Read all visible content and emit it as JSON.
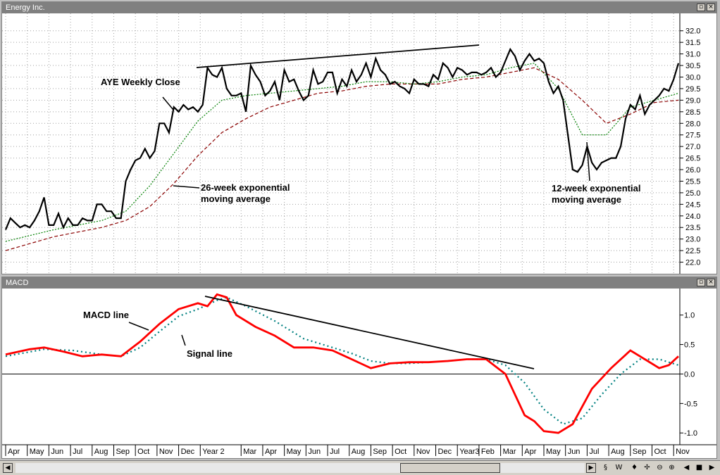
{
  "window": {
    "title": "Energy Inc."
  },
  "macd_window": {
    "title": "MACD"
  },
  "annotations": {
    "close": "AYE Weekly Close",
    "ema26_1": "26-week exponential",
    "ema26_2": "moving average",
    "ema12_1": "12-week exponential",
    "ema12_2": "moving average",
    "macd": "MACD line",
    "signal": "Signal line"
  },
  "colors": {
    "close": "#000000",
    "ema12": "#008000",
    "ema26": "#8b0000",
    "macd": "#ff0000",
    "signal": "#008080"
  },
  "toolbar": {
    "icons": [
      "scroll-end-icon",
      "wave-icon",
      "move-icon",
      "crosshair-icon",
      "zoom-out-icon",
      "zoom-in-icon",
      "left-arrow-icon",
      "stop-icon",
      "right-arrow-icon"
    ],
    "labels": [
      "§",
      "W",
      "♦",
      "✢",
      "⊖",
      "⊕",
      "◀",
      "■",
      "▶"
    ]
  },
  "chart_data": [
    {
      "type": "line",
      "title": "Energy Inc.",
      "x_range": [
        0,
        140
      ],
      "ylim": [
        21.5,
        32.6
      ],
      "yticks": [
        "22.0",
        "22.5",
        "23.0",
        "23.5",
        "24.0",
        "24.5",
        "25.0",
        "25.5",
        "26.0",
        "26.5",
        "27.0",
        "27.5",
        "28.0",
        "28.5",
        "29.0",
        "29.5",
        "30.0",
        "30.5",
        "31.0",
        "31.5",
        "32.0"
      ],
      "grid": true,
      "series": [
        {
          "name": "AYE Weekly Close",
          "x": [
            0,
            1,
            2,
            3,
            4,
            5,
            6,
            7,
            8,
            9,
            10,
            11,
            12,
            13,
            14,
            15,
            16,
            17,
            18,
            19,
            20,
            21,
            22,
            23,
            24,
            25,
            26,
            27,
            28,
            29,
            30,
            31,
            32,
            33,
            34,
            35,
            36,
            37,
            38,
            39,
            40,
            41,
            42,
            43,
            44,
            45,
            46,
            47,
            48,
            49,
            50,
            51,
            52,
            53,
            54,
            55,
            56,
            57,
            58,
            59,
            60,
            61,
            62,
            63,
            64,
            65,
            66,
            67,
            68,
            69,
            70,
            71,
            72,
            73,
            74,
            75,
            76,
            77,
            78,
            79,
            80,
            81,
            82,
            83,
            84,
            85,
            86,
            87,
            88,
            89,
            90,
            91,
            92,
            93,
            94,
            95,
            96,
            97,
            98,
            99,
            100,
            101,
            102,
            103,
            104,
            105,
            106,
            107,
            108,
            109,
            110,
            111,
            112,
            113,
            114,
            115,
            116,
            117,
            118,
            119,
            120,
            121,
            122,
            123,
            124,
            125,
            126,
            127,
            128,
            129,
            130,
            131,
            132,
            133,
            134,
            135,
            136,
            137,
            138,
            139,
            140
          ],
          "values": [
            23.4,
            23.9,
            23.7,
            23.5,
            23.6,
            23.5,
            23.8,
            24.2,
            24.8,
            23.6,
            23.6,
            24.1,
            23.5,
            23.9,
            23.6,
            23.6,
            23.9,
            23.8,
            23.8,
            24.5,
            24.5,
            24.2,
            24.2,
            23.9,
            23.9,
            25.5,
            26.0,
            26.4,
            26.5,
            26.9,
            26.5,
            26.8,
            28.0,
            28.0,
            27.6,
            28.7,
            28.5,
            28.8,
            28.6,
            28.7,
            28.5,
            28.8,
            30.4,
            30.1,
            30.0,
            30.4,
            29.5,
            29.2,
            29.2,
            29.3,
            28.5,
            30.5,
            30.1,
            29.8,
            29.2,
            29.4,
            29.8,
            29.0,
            30.3,
            29.8,
            29.9,
            29.4,
            29.0,
            29.2,
            30.3,
            29.7,
            29.8,
            30.2,
            30.2,
            29.3,
            29.9,
            29.6,
            30.3,
            29.8,
            30.1,
            30.6,
            30.0,
            30.8,
            30.3,
            30.1,
            29.7,
            29.8,
            29.6,
            29.5,
            29.3,
            29.9,
            29.7,
            29.7,
            29.6,
            30.1,
            29.9,
            30.6,
            30.4,
            30.0,
            30.4,
            30.3,
            30.1,
            30.2,
            30.2,
            30.1,
            30.2,
            30.4,
            30.0,
            30.2,
            30.7,
            31.2,
            30.9,
            30.3,
            30.7,
            31.0,
            30.7,
            30.8,
            30.6,
            29.8,
            29.3,
            29.6,
            29.0,
            27.5,
            26.0,
            25.9,
            26.2,
            27.0,
            26.3,
            26.0,
            26.3,
            26.4,
            26.5,
            26.5,
            27.0,
            28.2,
            28.8,
            28.6,
            29.2,
            28.4,
            28.8,
            29.0,
            29.2,
            29.5,
            29.4,
            29.9,
            30.6
          ]
        },
        {
          "name": "12-week exponential moving average",
          "x": [
            0,
            10,
            20,
            25,
            30,
            35,
            40,
            45,
            50,
            55,
            60,
            65,
            70,
            75,
            80,
            85,
            90,
            95,
            100,
            105,
            110,
            115,
            120,
            125,
            130,
            135,
            140
          ],
          "values": [
            22.9,
            23.4,
            23.8,
            24.2,
            25.3,
            26.7,
            28.1,
            29.0,
            29.2,
            29.3,
            29.4,
            29.5,
            29.6,
            29.8,
            29.8,
            29.7,
            29.8,
            30.0,
            30.1,
            30.4,
            30.6,
            29.5,
            27.5,
            27.5,
            28.7,
            29.0,
            29.3
          ]
        },
        {
          "name": "26-week exponential moving average",
          "x": [
            0,
            10,
            20,
            25,
            30,
            35,
            40,
            45,
            50,
            55,
            60,
            65,
            70,
            75,
            80,
            85,
            90,
            95,
            100,
            105,
            110,
            115,
            120,
            125,
            130,
            135,
            140
          ],
          "values": [
            22.5,
            23.1,
            23.5,
            23.8,
            24.4,
            25.4,
            26.6,
            27.6,
            28.2,
            28.7,
            29.0,
            29.3,
            29.4,
            29.6,
            29.7,
            29.7,
            29.7,
            29.9,
            30.0,
            30.2,
            30.4,
            29.9,
            29.0,
            28.0,
            28.4,
            28.9,
            29.0
          ]
        }
      ]
    },
    {
      "type": "line",
      "title": "MACD",
      "x_range": [
        0,
        140
      ],
      "ylim": [
        -1.2,
        1.45
      ],
      "yticks": [
        "1.0",
        "0.5",
        "0.0",
        "-0.5",
        "-1.0"
      ],
      "grid": false,
      "zero_line": true,
      "series": [
        {
          "name": "MACD line",
          "x": [
            0,
            5,
            8,
            12,
            16,
            20,
            24,
            28,
            32,
            36,
            40,
            42,
            44,
            46,
            48,
            52,
            56,
            60,
            64,
            68,
            72,
            76,
            80,
            84,
            88,
            92,
            96,
            100,
            104,
            108,
            110,
            112,
            115,
            118,
            122,
            126,
            130,
            133,
            136,
            138,
            140
          ],
          "values": [
            0.33,
            0.42,
            0.45,
            0.38,
            0.3,
            0.33,
            0.3,
            0.55,
            0.85,
            1.1,
            1.2,
            1.15,
            1.35,
            1.3,
            1.0,
            0.8,
            0.65,
            0.45,
            0.45,
            0.4,
            0.25,
            0.1,
            0.18,
            0.2,
            0.2,
            0.22,
            0.25,
            0.25,
            0.0,
            -0.7,
            -0.8,
            -0.97,
            -1.0,
            -0.85,
            -0.25,
            0.1,
            0.4,
            0.25,
            0.1,
            0.15,
            0.3
          ]
        },
        {
          "name": "Signal line",
          "x": [
            0,
            8,
            14,
            20,
            24,
            28,
            32,
            36,
            40,
            44,
            46,
            50,
            56,
            62,
            68,
            72,
            76,
            80,
            84,
            88,
            92,
            96,
            100,
            104,
            108,
            112,
            116,
            120,
            124,
            128,
            132,
            136,
            140
          ],
          "values": [
            0.3,
            0.42,
            0.4,
            0.33,
            0.3,
            0.45,
            0.72,
            0.98,
            1.1,
            1.25,
            1.3,
            1.15,
            0.9,
            0.6,
            0.45,
            0.35,
            0.22,
            0.18,
            0.18,
            0.2,
            0.22,
            0.25,
            0.25,
            0.15,
            -0.15,
            -0.6,
            -0.85,
            -0.75,
            -0.35,
            0.0,
            0.25,
            0.25,
            0.15
          ]
        }
      ]
    },
    {
      "type": "x-axis",
      "tick_labels": [
        "Apr",
        "May",
        "Jun",
        "Jul",
        "Aug",
        "Sep",
        "Oct",
        "Nov",
        "Dec",
        "Year 2",
        "Mar",
        "Apr",
        "May",
        "Jun",
        "Jul",
        "Aug",
        "Sep",
        "Oct",
        "Nov",
        "Dec",
        "Year3",
        "Feb",
        "Mar",
        "Apr",
        "May",
        "Jun",
        "Jul",
        "Aug",
        "Sep",
        "Oct",
        "Nov"
      ],
      "tick_x": [
        0,
        4.5,
        9,
        13.5,
        18,
        22.5,
        27,
        31.5,
        36,
        40.5,
        49,
        53.5,
        58,
        62.5,
        67,
        71.5,
        76,
        80.5,
        85,
        89.5,
        94,
        98.5,
        103,
        107.5,
        112,
        116.5,
        121,
        125.5,
        130,
        134.5,
        139
      ]
    }
  ]
}
